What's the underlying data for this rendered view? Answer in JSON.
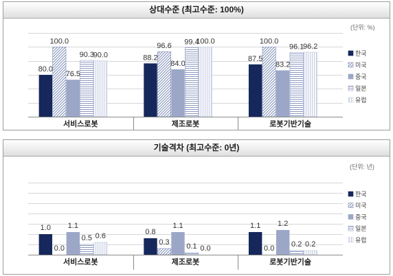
{
  "chart_data": [
    {
      "type": "bar",
      "title": "상대수준 (최고수준: 100%)",
      "unit_label": "(단위: %)",
      "categories": [
        "서비스로봇",
        "제조로봇",
        "로봇기반기술"
      ],
      "series": [
        {
          "name": "한국",
          "values": [
            80.0,
            88.2,
            87.5
          ],
          "color": "#16275b",
          "pattern": "solid"
        },
        {
          "name": "미국",
          "values": [
            100.0,
            96.6,
            100.0
          ],
          "color": "#7d8db6",
          "pattern": "diagonal-hatch"
        },
        {
          "name": "중국",
          "values": [
            76.5,
            84.0,
            83.2
          ],
          "color": "#9ca7c8",
          "pattern": "solid"
        },
        {
          "name": "일본",
          "values": [
            90.3,
            99.4,
            96.1
          ],
          "color": "#8b98bf",
          "pattern": "horizontal-stripes"
        },
        {
          "name": "유럽",
          "values": [
            90.0,
            100.0,
            96.2
          ],
          "color": "#bcc5dc",
          "pattern": "vertical-stripes"
        }
      ],
      "ylim": [
        50,
        110
      ],
      "grid": true,
      "legend": "right"
    },
    {
      "type": "bar",
      "title": "기술격차 (최고수준: 0년)",
      "unit_label": "(단위: 년)",
      "categories": [
        "서비스로봇",
        "제조로봇",
        "로봇기반기술"
      ],
      "series": [
        {
          "name": "한국",
          "values": [
            1.0,
            0.8,
            1.1
          ],
          "color": "#16275b",
          "pattern": "solid"
        },
        {
          "name": "미국",
          "values": [
            0.0,
            0.3,
            0.0
          ],
          "color": "#7d8db6",
          "pattern": "diagonal-hatch"
        },
        {
          "name": "중국",
          "values": [
            1.1,
            1.1,
            1.2
          ],
          "color": "#9ca7c8",
          "pattern": "solid"
        },
        {
          "name": "일본",
          "values": [
            0.5,
            0.1,
            0.2
          ],
          "color": "#8b98bf",
          "pattern": "horizontal-stripes"
        },
        {
          "name": "유럽",
          "values": [
            0.6,
            0.0,
            0.2
          ],
          "color": "#bcc5dc",
          "pattern": "vertical-stripes"
        }
      ],
      "ylim": [
        0,
        3.5
      ],
      "grid": true,
      "legend": "right"
    }
  ]
}
